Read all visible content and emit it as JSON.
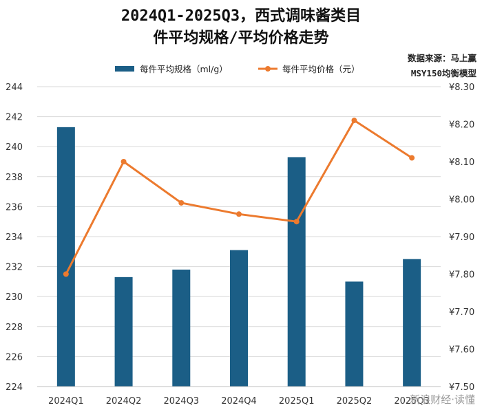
{
  "title_line1": "2024Q1-2025Q3，西式调味酱类目",
  "title_line2": "件平均规格/平均价格走势",
  "source_line1": "数据来源：马上赢",
  "source_line2": "MSY150均衡模型",
  "watermark": "新浪财经·读懂",
  "colors": {
    "bar": "#1b5e86",
    "line": "#ec7a2e",
    "grid": "#d9d9d9",
    "axis_text": "#333333"
  },
  "chart_data": {
    "type": "bar",
    "categories": [
      "2024Q1",
      "2024Q2",
      "2024Q3",
      "2024Q4",
      "2025Q1",
      "2025Q2",
      "2025Q3"
    ],
    "series": [
      {
        "name": "每件平均规格（ml/g）",
        "type": "bar",
        "axis": "left",
        "values": [
          241.3,
          231.3,
          231.8,
          233.1,
          239.3,
          231.0,
          232.5
        ]
      },
      {
        "name": "每件平均价格（元）",
        "type": "line",
        "axis": "right",
        "values": [
          7.8,
          8.1,
          7.99,
          7.96,
          7.94,
          8.21,
          8.11
        ]
      }
    ],
    "ylim_left": [
      224,
      244
    ],
    "yticks_left": [
      "224",
      "226",
      "228",
      "230",
      "232",
      "234",
      "236",
      "238",
      "240",
      "242",
      "244"
    ],
    "ylim_right": [
      7.5,
      8.3
    ],
    "yticks_right": [
      "¥7.50",
      "¥7.60",
      "¥7.70",
      "¥7.80",
      "¥7.90",
      "¥8.00",
      "¥8.10",
      "¥8.20",
      "¥8.30"
    ],
    "grid": true,
    "legend_position": "top"
  }
}
